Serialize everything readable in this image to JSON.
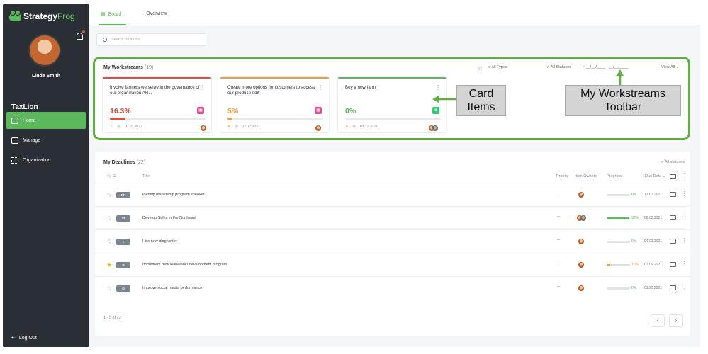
{
  "app": {
    "logo_main": "Strategy",
    "logo_accent": "Frog"
  },
  "sidebar": {
    "user_name": "Linda Smith",
    "org_name": "TaxLion",
    "items": [
      {
        "label": "Home",
        "icon": "home-icon"
      },
      {
        "label": "Manage",
        "icon": "checkbox-icon"
      },
      {
        "label": "Organization",
        "icon": "org-chart-icon"
      }
    ],
    "logout_label": "Log Out"
  },
  "header": {
    "tabs": [
      {
        "label": "Board"
      },
      {
        "label": "Overview"
      }
    ]
  },
  "search": {
    "placeholder": "Search for items"
  },
  "workstreams": {
    "title": "My Workstreams",
    "count": "(19)",
    "toolbar": {
      "types": "All Types",
      "statuses": "All Statuses",
      "date_range": "__/__/____ - __/__/____",
      "view_all": "View All"
    },
    "cards": [
      {
        "title": "Involve farmers we serve in the governance of our organization AR...",
        "percent": "16.3%",
        "progress": 0.163,
        "color": "#e74c3c",
        "badge": "▣",
        "badge_color": "#e84b8a",
        "date": "03.01.2022"
      },
      {
        "title": "Create more options for customers to access our produce edit",
        "percent": "5%",
        "progress": 0.05,
        "color": "#f39c35",
        "badge": "▣",
        "badge_color": "#e84b8a",
        "date": "12.17.2021"
      },
      {
        "title": "Buy a new farm",
        "percent": "0%",
        "progress": 0,
        "color": "#5cb85c",
        "badge": "$",
        "badge_color": "#2ecc71",
        "date": "03.31.2021"
      }
    ]
  },
  "annotations": {
    "card_items": "Card Items",
    "toolbar": "My Workstreams Toolbar"
  },
  "deadlines": {
    "title": "My Deadlines",
    "count": "(22)",
    "filter": "All statuses",
    "columns": {
      "title": "Title",
      "priority": "Priority",
      "owners": "Item Owners",
      "progress": "Progress",
      "due": "Due Date"
    },
    "rows": [
      {
        "code": "KR",
        "title": "Identify leadership program speaker",
        "priority": "--",
        "progress": 0,
        "pct": "0%",
        "pct_color": "#5cb85c",
        "date": "12.02.2021",
        "starred": false
      },
      {
        "code": "SI",
        "title": "Develop Sales in the Northeast",
        "priority": "--",
        "progress": 0.93,
        "pct": "93%",
        "pct_color": "#5cb85c",
        "date": "06.02.2021",
        "starred": false
      },
      {
        "code": "T",
        "title": "Hire new blog writer",
        "priority": "--",
        "progress": 0,
        "pct": "0%",
        "pct_color": "#5cb85c",
        "date": "04.01.2021",
        "starred": false
      },
      {
        "code": "O",
        "title": "Implement new leadership development program",
        "priority": "--",
        "progress": 0.15,
        "pct": "15%",
        "pct_color": "#f39c35",
        "date": "02.09.2021",
        "starred": true
      },
      {
        "code": "O",
        "title": "Improve social media performance",
        "priority": "--",
        "progress": 0,
        "pct": "0%",
        "pct_color": "#5cb85c",
        "date": "01.29.2021",
        "starred": false
      }
    ],
    "pagination": "1 - 5 of 22"
  }
}
